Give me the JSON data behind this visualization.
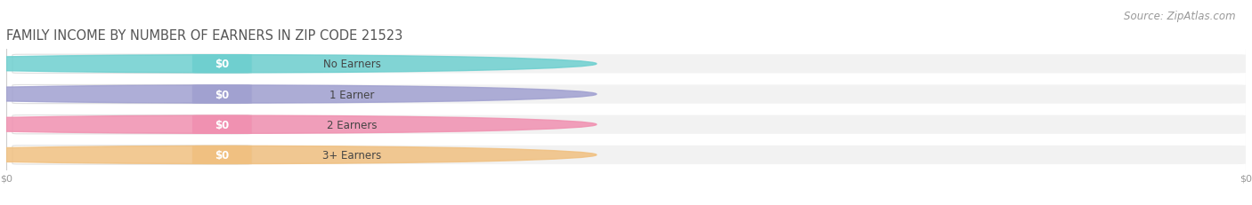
{
  "title": "FAMILY INCOME BY NUMBER OF EARNERS IN ZIP CODE 21523",
  "source": "Source: ZipAtlas.com",
  "categories": [
    "No Earners",
    "1 Earner",
    "2 Earners",
    "3+ Earners"
  ],
  "values": [
    0,
    0,
    0,
    0
  ],
  "bar_colors": [
    "#6dcfcf",
    "#a0a0d0",
    "#f090b0",
    "#f0c080"
  ],
  "bg_color": "#ffffff",
  "bar_bg_color": "#f2f2f2",
  "title_color": "#555555",
  "source_color": "#999999",
  "value_label": "$0",
  "bar_height": 0.62,
  "title_fontsize": 10.5,
  "label_fontsize": 8.5,
  "value_fontsize": 8.5,
  "source_fontsize": 8.5,
  "xtick_labels": [
    "$0",
    "$0"
  ],
  "xtick_positions": [
    0.0,
    1.0
  ]
}
